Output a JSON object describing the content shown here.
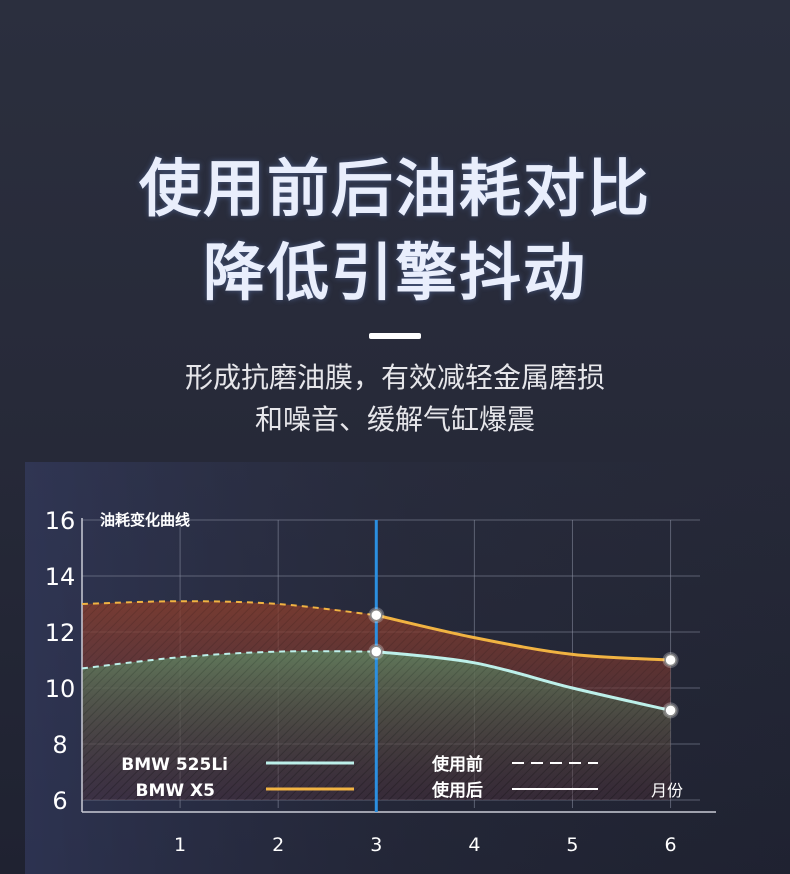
{
  "header": {
    "title_line1": "使用前后油耗对比",
    "title_line2": "降低引擎抖动",
    "subtitle_line1": "形成抗磨油膜，有效减轻金属磨损",
    "subtitle_line2": "和噪音、缓解气缸爆震"
  },
  "chart_data": {
    "type": "line",
    "title": "油耗变化曲线",
    "xlabel": "月份",
    "ylabel": "",
    "x": [
      0,
      1,
      2,
      3,
      4,
      5,
      6
    ],
    "x_tick_labels": [
      "1",
      "2",
      "3",
      "4",
      "5",
      "6"
    ],
    "x_ticks": [
      1,
      2,
      3,
      4,
      5,
      6
    ],
    "y_ticks": [
      6,
      8,
      10,
      12,
      14,
      16
    ],
    "xlim": [
      0,
      6.3
    ],
    "ylim": [
      6,
      16
    ],
    "highlight_x": 3,
    "grid": true,
    "series": [
      {
        "name": "BMW 525Li",
        "color": "#bdf0ea",
        "fill": "#4d7a5c",
        "values": [
          10.7,
          11.1,
          11.3,
          11.3,
          10.9,
          10.0,
          9.2
        ],
        "marker_x": [
          3,
          6
        ]
      },
      {
        "name": "BMW X5",
        "color": "#f1b342",
        "fill": "#6e3a2a",
        "values": [
          13.0,
          13.1,
          13.0,
          12.6,
          11.8,
          11.2,
          11.0
        ],
        "marker_x": [
          3,
          6
        ]
      }
    ],
    "line_style_legend": [
      {
        "label": "使用前",
        "style": "dashed"
      },
      {
        "label": "使用后",
        "style": "solid"
      }
    ],
    "before_after_split_x": 3
  }
}
